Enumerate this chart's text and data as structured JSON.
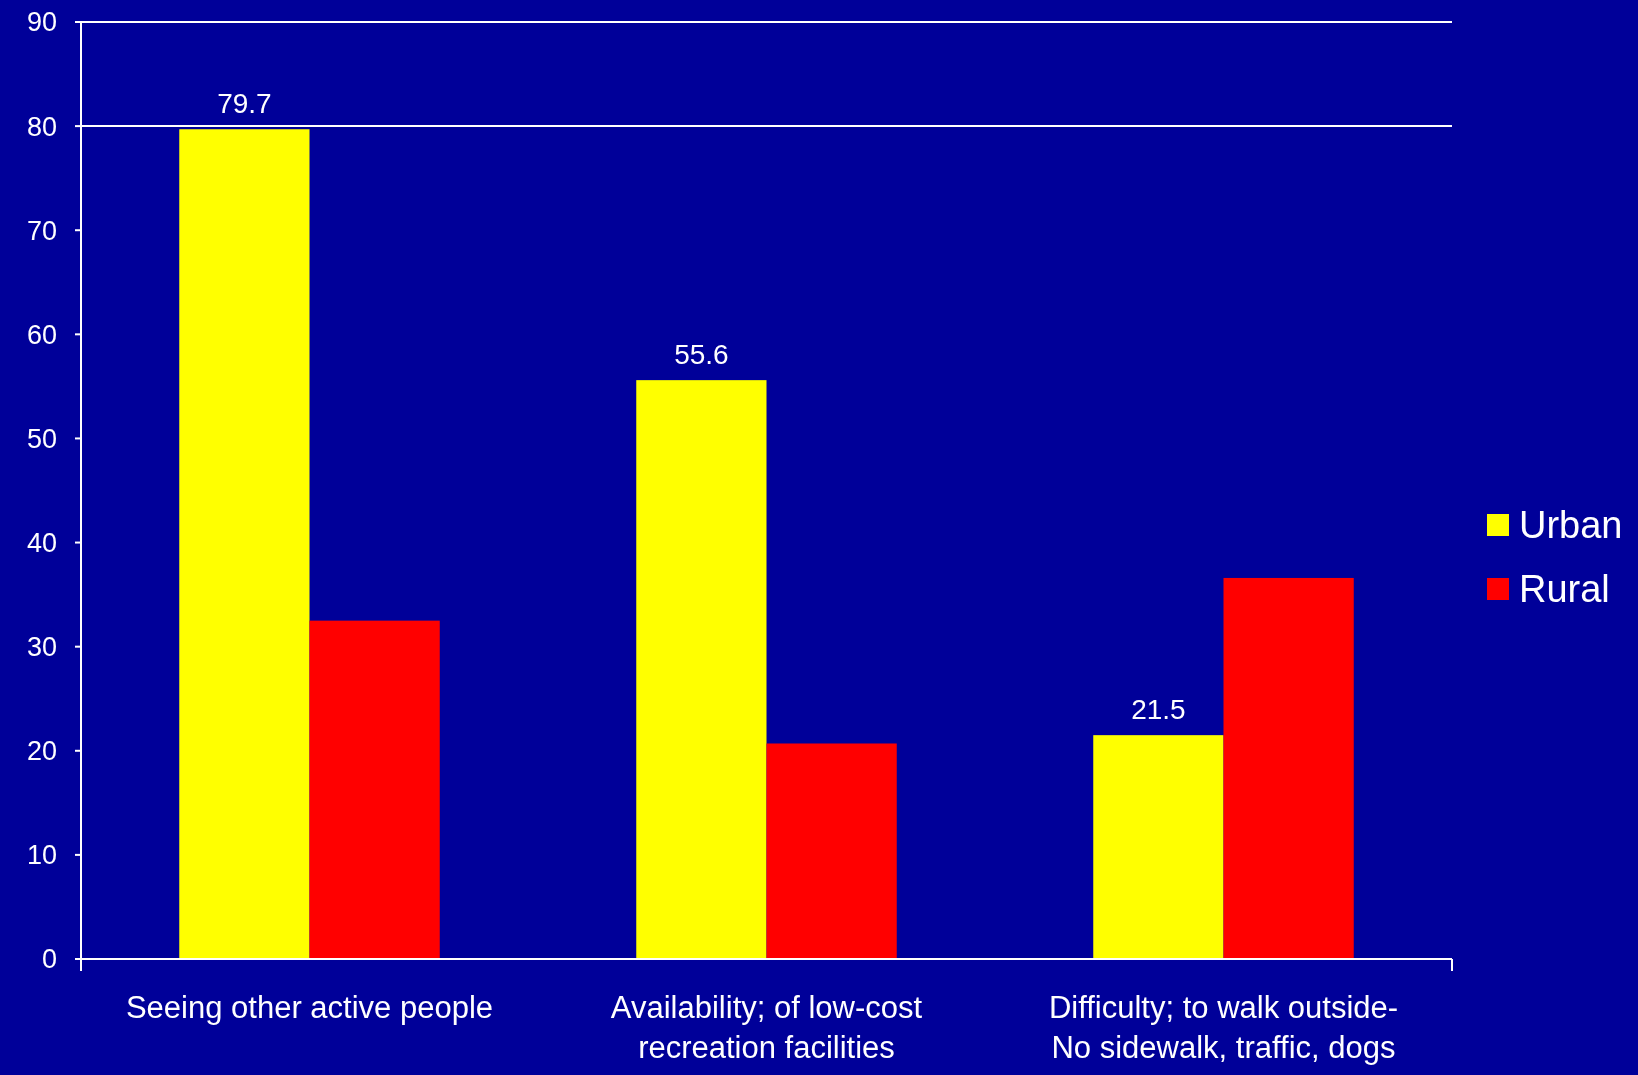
{
  "chart_data": {
    "type": "bar",
    "categories": [
      "Seeing other active people",
      "Availability; of low-cost recreation facilities",
      "Difficulty; to walk outside- No sidewalk, traffic, dogs"
    ],
    "series": [
      {
        "name": "Urban",
        "color": "#ffff00",
        "values": [
          79.7,
          55.6,
          21.5
        ],
        "value_labels": [
          "79.7",
          "55.6",
          "21.5"
        ]
      },
      {
        "name": "Rural",
        "color": "#ff0000",
        "values": [
          32.5,
          20.7,
          36.6
        ]
      }
    ],
    "ylim": [
      0,
      90
    ],
    "yticks": [
      0,
      10,
      20,
      30,
      40,
      50,
      60,
      70,
      80,
      90
    ],
    "ref_lines": [
      {
        "axis": "y",
        "value": 80,
        "color": "#ffffff"
      }
    ],
    "legend": "right",
    "grid": false
  }
}
